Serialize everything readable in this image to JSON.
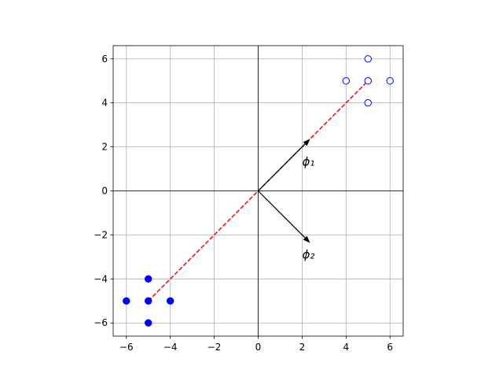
{
  "chart_data": {
    "type": "scatter",
    "xlim": [
      -6.6,
      6.6
    ],
    "ylim": [
      -6.6,
      6.6
    ],
    "xticks": [
      {
        "value": -6,
        "label": "−6"
      },
      {
        "value": -4,
        "label": "−4"
      },
      {
        "value": -2,
        "label": "−2"
      },
      0,
      2,
      4,
      6
    ],
    "yticks": [
      {
        "value": -6,
        "label": "−6"
      },
      {
        "value": -4,
        "label": "−4"
      },
      {
        "value": -2,
        "label": "−2"
      },
      0,
      2,
      4,
      6
    ],
    "grid": true,
    "series": [
      {
        "marker": "filled",
        "color": "#0000ff",
        "x": [
          -6,
          -5,
          -5,
          -4,
          -5
        ],
        "y": [
          -5,
          -4,
          -5,
          -5,
          -6
        ]
      },
      {
        "marker": "hollow",
        "color": "#0000ff",
        "x": [
          4,
          5,
          5,
          6,
          5
        ],
        "y": [
          5,
          6,
          5,
          5,
          4
        ]
      }
    ],
    "lines": [
      {
        "color": "#ff0000",
        "dashed": true,
        "x": [
          -5,
          5
        ],
        "y": [
          -5,
          5
        ]
      }
    ],
    "arrows": [
      {
        "label": "ϕ₁",
        "color": "#000000",
        "dx": 2.36,
        "dy": 2.36
      },
      {
        "label": "ϕ₂",
        "color": "#000000",
        "dx": 2.36,
        "dy": -2.36
      }
    ]
  }
}
